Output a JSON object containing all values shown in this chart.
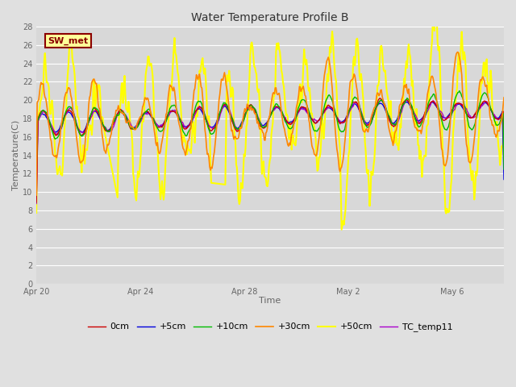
{
  "title": "Water Temperature Profile B",
  "xlabel": "Time",
  "ylabel": "Temperature(C)",
  "ylim": [
    0,
    28
  ],
  "yticks": [
    0,
    2,
    4,
    6,
    8,
    10,
    12,
    14,
    16,
    18,
    20,
    22,
    24,
    26,
    28
  ],
  "figure_bg": "#e0e0e0",
  "plot_bg": "#d8d8d8",
  "grid_color": "#ffffff",
  "annotation_text": "SW_met",
  "annotation_bg": "#ffff99",
  "annotation_border": "#8b0000",
  "annotation_text_color": "#8b0000",
  "series": {
    "0cm": {
      "color": "#cc0000",
      "lw": 1.0,
      "zorder": 4
    },
    "+5cm": {
      "color": "#0000dd",
      "lw": 1.0,
      "zorder": 3
    },
    "+10cm": {
      "color": "#00bb00",
      "lw": 1.0,
      "zorder": 5
    },
    "+30cm": {
      "color": "#ff8800",
      "lw": 1.2,
      "zorder": 6
    },
    "+50cm": {
      "color": "#ffff00",
      "lw": 1.5,
      "zorder": 2
    },
    "TC_temp11": {
      "color": "#aa00cc",
      "lw": 1.0,
      "zorder": 3
    }
  },
  "legend_order": [
    "0cm",
    "+5cm",
    "+10cm",
    "+30cm",
    "+50cm",
    "TC_temp11"
  ],
  "xtick_pos": [
    0,
    4,
    8,
    12,
    16
  ],
  "xtick_labels": [
    "Apr 20",
    "Apr 24",
    "Apr 28",
    "May 2",
    "May 6"
  ],
  "xlim": [
    0,
    18
  ]
}
